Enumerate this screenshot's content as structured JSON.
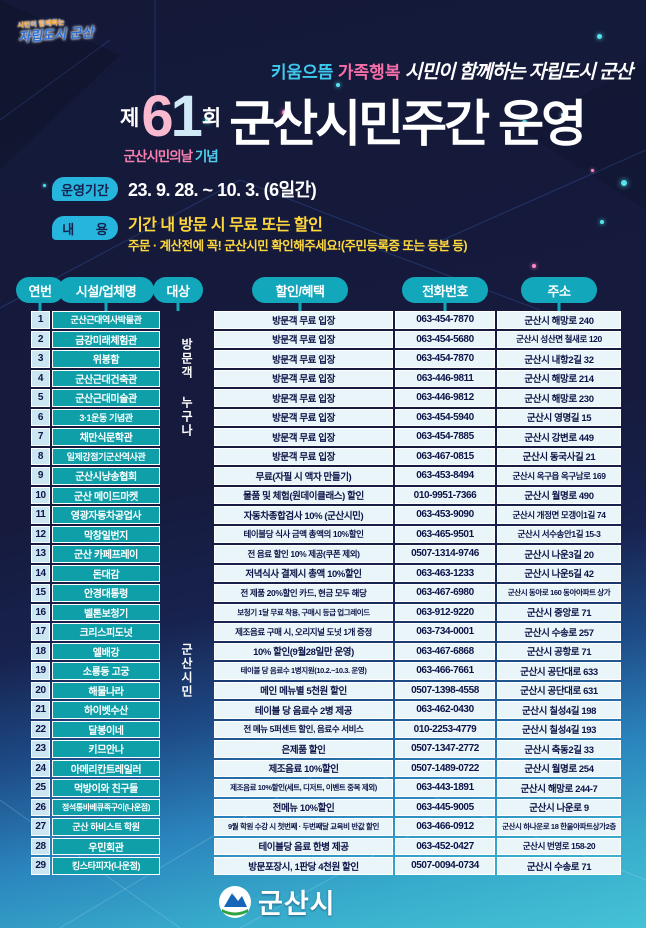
{
  "brand": {
    "small": "시민이 함께하는",
    "main": "자립도시 군산"
  },
  "tagline": {
    "part1": "키움으뜸",
    "part2": "가족행복",
    "script": "시민이 함께하는 자립도시 군산"
  },
  "title": {
    "prefix": "제",
    "num1": "6",
    "num2": "1",
    "suffix": "회",
    "sub_a": "군산시민의날",
    "sub_b": "기념",
    "main": "군산시민주간 운영"
  },
  "period": {
    "label": "운영기간",
    "value": "23. 9. 28. ~ 10. 3. (6일간)"
  },
  "content": {
    "label": "내      용",
    "line1": "기간 내 방문 시 무료 또는 할인",
    "line2": "주문 · 계산전에 꼭! 군산시민 확인해주세요!(주민등록증 또는 등본 등)"
  },
  "table": {
    "headers": [
      "연번",
      "시설/업체명",
      "대상",
      "할인/혜택",
      "전화번호",
      "주소"
    ],
    "target_groups": [
      {
        "label": "방문객 누구나",
        "start": 1,
        "count": 8
      },
      {
        "label": "군산시민",
        "start": 9,
        "count": 21
      }
    ],
    "rows": [
      {
        "no": "1",
        "name": "군산근대역사박물관",
        "benefit": "방문객 무료 입장",
        "phone": "063-454-7870",
        "address": "군산시 해망로 240"
      },
      {
        "no": "2",
        "name": "금강미래체험관",
        "benefit": "방문객 무료 입장",
        "phone": "063-454-5680",
        "address": "군산시 성산면 철새로 120"
      },
      {
        "no": "3",
        "name": "위봉함",
        "benefit": "방문객 무료 입장",
        "phone": "063-454-7870",
        "address": "군산시 내항2길 32"
      },
      {
        "no": "4",
        "name": "군산근대건축관",
        "benefit": "방문객 무료 입장",
        "phone": "063-446-9811",
        "address": "군산시 해망로 214"
      },
      {
        "no": "5",
        "name": "군산근대미술관",
        "benefit": "방문객 무료 입장",
        "phone": "063-446-9812",
        "address": "군산시 해망로 230"
      },
      {
        "no": "6",
        "name": "3·1운동 기념관",
        "benefit": "방문객 무료 입장",
        "phone": "063-454-5940",
        "address": "군산시 영명길 15"
      },
      {
        "no": "7",
        "name": "채만식문학관",
        "benefit": "방문객 무료 입장",
        "phone": "063-454-7885",
        "address": "군산시 강변로 449"
      },
      {
        "no": "8",
        "name": "일제강점기군산역사관",
        "benefit": "방문객 무료 입장",
        "phone": "063-467-0815",
        "address": "군산시 동국사길 21"
      },
      {
        "no": "9",
        "name": "군산시낭송협회",
        "benefit": "무료(자필 시 액자 만들기)",
        "phone": "063-453-8494",
        "address": "군산시 옥구읍 옥구남로 169"
      },
      {
        "no": "10",
        "name": "군산 메이드마켓",
        "benefit": "물품 및 체험(원데이클래스) 할인",
        "phone": "010-9951-7366",
        "address": "군산시 월명로 490"
      },
      {
        "no": "11",
        "name": "영광자동차공업사",
        "benefit": "자동차종합검사 10% (군산시민)",
        "phone": "063-453-9090",
        "address": "군산시 개정면 모갱이1길 74"
      },
      {
        "no": "12",
        "name": "막창일번지",
        "benefit": "테이블당 식사 금액 총액의 10%할인",
        "phone": "063-465-9501",
        "address": "군산시 서수송안1길 15-3"
      },
      {
        "no": "13",
        "name": "군산 카페프레이",
        "benefit": "전 음료 할인 10% 제공(쿠폰 제외)",
        "phone": "0507-1314-9746",
        "address": "군산시 나운3길 20"
      },
      {
        "no": "14",
        "name": "돈대감",
        "benefit": "저녁식사 결제시 총액 10%할인",
        "phone": "063-463-1233",
        "address": "군산시 나운5길 42"
      },
      {
        "no": "15",
        "name": "안경대통령",
        "benefit": "전 제품 20%할인 카드, 현금 모두 해당",
        "phone": "063-467-6980",
        "address": "군산시 동아로 160 동아아파트 상가"
      },
      {
        "no": "16",
        "name": "벨톤보청기",
        "benefit": "보청기 1달 무료 착용, 구매시 등급 업그레이드",
        "phone": "063-912-9220",
        "address": "군산시 중앙로 71"
      },
      {
        "no": "17",
        "name": "크리스피도넛",
        "benefit": "제조음료 구매 시, 오리지널 도넛 1개 증정",
        "phone": "063-734-0001",
        "address": "군산시 수송로 257"
      },
      {
        "no": "18",
        "name": "엘배강",
        "benefit": "10% 할인(9월28일만 운영)",
        "phone": "063-467-6868",
        "address": "군산시 공항로 71"
      },
      {
        "no": "19",
        "name": "소룡동 고궁",
        "benefit": "테이블 당 음료수 1병지원(10.2.~10.3. 운영)",
        "phone": "063-466-7661",
        "address": "군산시 공단대로 633"
      },
      {
        "no": "20",
        "name": "해물나라",
        "benefit": "메인 메뉴별 5천원 할인",
        "phone": "0507-1398-4558",
        "address": "군산시 공단대로 631"
      },
      {
        "no": "21",
        "name": "하이벳수산",
        "benefit": "테이블 당 음료수 2병 제공",
        "phone": "063-462-0430",
        "address": "군산시 칠성4길 198"
      },
      {
        "no": "22",
        "name": "달봉이네",
        "benefit": "전 메뉴 5퍼센트 할인, 음료수 서비스",
        "phone": "010-2253-4779",
        "address": "군산시 칠성4길 193"
      },
      {
        "no": "23",
        "name": "키므안나",
        "benefit": "은제품 할인",
        "phone": "0507-1347-2772",
        "address": "군산시 축동2길 33"
      },
      {
        "no": "24",
        "name": "아메리칸트레일러",
        "benefit": "제조음료 10%할인",
        "phone": "0507-1489-0722",
        "address": "군산시 월명로 254"
      },
      {
        "no": "25",
        "name": "먹방이와 친구들",
        "benefit": "제조음료 10%할인(세트, 디저트, 이벤트 중복 제외)",
        "phone": "063-443-1891",
        "address": "군산시 해망로 244-7"
      },
      {
        "no": "26",
        "name": "정석통바베큐족구이(나운점)",
        "benefit": "전메뉴 10%할인",
        "phone": "063-445-9005",
        "address": "군산시 나운로 9"
      },
      {
        "no": "27",
        "name": "군산 하비스트 학원",
        "benefit": "9월 학원 수강 시 첫번째 · 두번째달 교육비 반값 할인",
        "phone": "063-466-0912",
        "address": "군산시 하나운로 18 한울아파트상가2층"
      },
      {
        "no": "28",
        "name": "우민회관",
        "benefit": "테이블당 음료 한병 제공",
        "phone": "063-452-0427",
        "address": "군산시 번영로 158-20"
      },
      {
        "no": "29",
        "name": "킹스타피자(나운점)",
        "benefit": "방문포장시, 1판당 4천원 할인",
        "phone": "0507-0094-0734",
        "address": "군산시 수송로 71"
      }
    ]
  },
  "footer": {
    "logo": "군산시"
  },
  "colors": {
    "background_navy": "#161b3e",
    "teal": "#13a7bc",
    "teal_cell": "#0f9fa8",
    "badge_cyan": "#25b5dd",
    "yellow": "#ffd83d",
    "pink": "#f56ea8",
    "light_cell": "#eaf5fa",
    "number_cell": "#cbe5f1",
    "bottom_teal": "#45c2d6"
  }
}
